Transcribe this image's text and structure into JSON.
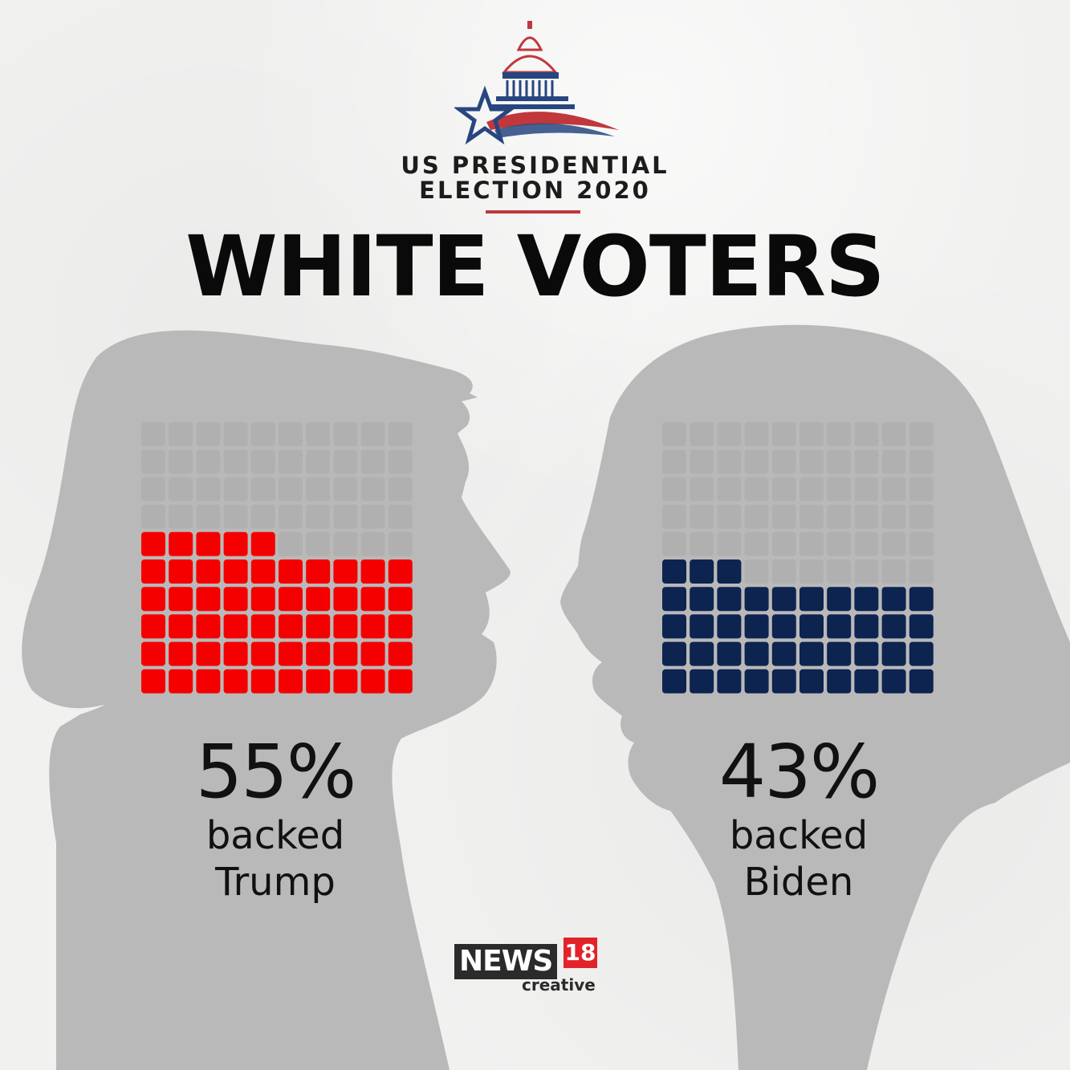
{
  "header": {
    "line1": "US PRESIDENTIAL",
    "line2": "ELECTION 2020",
    "title": "WHITE VOTERS"
  },
  "colors": {
    "trump": "#f50000",
    "biden": "#0d2451",
    "empty": "#b0b0b0",
    "silhouette": "#b9b9b9",
    "accent_red": "#c0373c",
    "accent_blue": "#27467f"
  },
  "chart_data": [
    {
      "type": "waffle",
      "grid": [
        10,
        10
      ],
      "value": 55,
      "label": "55%",
      "caption_line1": "backed",
      "caption_line2": "Trump",
      "color": "#f50000"
    },
    {
      "type": "waffle",
      "grid": [
        10,
        10
      ],
      "value": 43,
      "label": "43%",
      "caption_line1": "backed",
      "caption_line2": "Biden",
      "color": "#0d2451"
    }
  ],
  "footer": {
    "brand": "NEWS",
    "brand_number": "18",
    "brand_sub": "creative"
  }
}
